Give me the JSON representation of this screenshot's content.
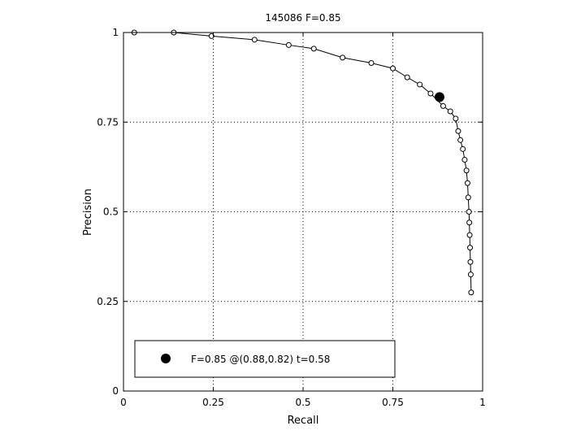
{
  "chart_data": {
    "type": "line",
    "title": "145086 F=0.85",
    "xlabel": "Recall",
    "ylabel": "Precision",
    "xlim": [
      0,
      1
    ],
    "ylim": [
      0,
      1
    ],
    "xticks": [
      0,
      0.25,
      0.5,
      0.75,
      1
    ],
    "xtick_labels": [
      "0",
      "0.25",
      "0.5",
      "0.75",
      "1"
    ],
    "yticks": [
      0,
      0.25,
      0.5,
      0.75,
      1
    ],
    "ytick_labels": [
      "0",
      "0.25",
      "0.5",
      "0.75",
      "1"
    ],
    "grid": true,
    "legend_position": "bottom-left",
    "legend_label": "F=0.85 @(0.88,0.82) t=0.58",
    "series": [
      {
        "x": [
          0.03,
          0.14,
          0.245,
          0.365,
          0.46,
          0.53,
          0.61,
          0.69,
          0.75,
          0.79,
          0.825,
          0.855,
          0.89,
          0.91,
          0.925,
          0.932,
          0.938,
          0.945,
          0.95,
          0.955,
          0.958,
          0.96,
          0.962,
          0.963,
          0.964,
          0.965,
          0.966,
          0.967,
          0.968
        ],
        "y": [
          1.0,
          1.0,
          0.99,
          0.98,
          0.965,
          0.955,
          0.93,
          0.915,
          0.9,
          0.875,
          0.855,
          0.83,
          0.795,
          0.78,
          0.76,
          0.725,
          0.7,
          0.675,
          0.645,
          0.615,
          0.58,
          0.54,
          0.5,
          0.47,
          0.435,
          0.4,
          0.36,
          0.325,
          0.275
        ]
      }
    ],
    "highlight": {
      "x": 0.88,
      "y": 0.82
    },
    "colors": {
      "line": "#000000",
      "marker_edge": "#000000",
      "highlight": "#000000",
      "grid": "#000000"
    }
  }
}
